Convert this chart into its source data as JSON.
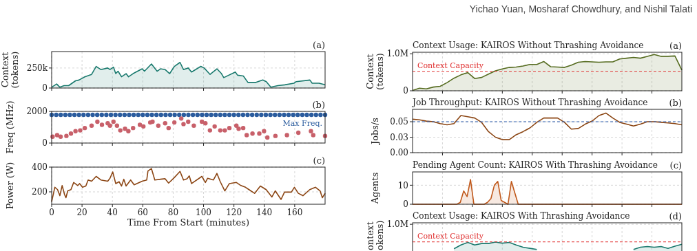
{
  "chart_data": [
    {
      "type": "other",
      "title": "Yichao Yuan, Mosharaf Chowdhury, and Nishil Talati"
    },
    {
      "type": "area",
      "ylabel": "Context\n(tokens)",
      "annotations": [
        "(a)"
      ],
      "xlim": [
        0,
        180
      ],
      "xticks": [
        0,
        20,
        40,
        60,
        80,
        100,
        120,
        140,
        160
      ],
      "ylim": [
        0,
        455000
      ],
      "yticks": [
        0,
        {
          "value": 250000,
          "label": "250k"
        }
      ],
      "grid": true,
      "tick_labels": "y",
      "series": [
        {
          "color": "#1a7a6e",
          "x": [
            0,
            3.3,
            5.4,
            8.2,
            11.2,
            15.7,
            18,
            21.8,
            26.3,
            29.3,
            32.4,
            36.9,
            38.4,
            40.7,
            42.2,
            43.7,
            46,
            49,
            50.6,
            53.6,
            59.6,
            61.1,
            65.7,
            69.4,
            71.7,
            74.7,
            77.7,
            80.8,
            84.5,
            86.8,
            89.9,
            92.1,
            98.2,
            100.4,
            104.3,
            108.8,
            111.8,
            113.3,
            120.9,
            122.4,
            126.2,
            129.2,
            134.5,
            139,
            141.3,
            144.3,
            148.9,
            153.4,
            159.5,
            161,
            170,
            171.5,
            176,
            180
          ],
          "values": [
            10000,
            50000,
            10000,
            30000,
            30000,
            90000,
            100000,
            140000,
            170000,
            270000,
            230000,
            250000,
            230000,
            260000,
            180000,
            210000,
            140000,
            180000,
            140000,
            180000,
            240000,
            210000,
            300000,
            210000,
            240000,
            230000,
            180000,
            270000,
            320000,
            230000,
            250000,
            200000,
            270000,
            250000,
            170000,
            240000,
            180000,
            130000,
            200000,
            160000,
            150000,
            70000,
            70000,
            100000,
            80000,
            10000,
            30000,
            40000,
            60000,
            80000,
            100000,
            60000,
            60000,
            40000
          ]
        }
      ]
    },
    {
      "type": "scatter",
      "ylabel": "Freq (MHz)",
      "annotations": [
        "(b)"
      ],
      "xlim": [
        0,
        180
      ],
      "xticks": [
        0,
        20,
        40,
        60,
        80,
        100,
        120,
        140,
        160
      ],
      "ylim": [
        0,
        2000
      ],
      "yticks": [
        0,
        2000
      ],
      "grid": true,
      "tick_labels": "y",
      "marker": "circle",
      "series": [
        {
          "name": "Max Freq.",
          "color": "#2b5c9e",
          "x": [
            0,
            3,
            6,
            9,
            12,
            15,
            18,
            21,
            24,
            27,
            30,
            33,
            36,
            39,
            42,
            45,
            48,
            51,
            54,
            57,
            60,
            63,
            66,
            69,
            72,
            75,
            78,
            81,
            84,
            87,
            90,
            93,
            96,
            99,
            102,
            105,
            108,
            111,
            114,
            117,
            120,
            123,
            126,
            129,
            132,
            135,
            138,
            141,
            144,
            147,
            150,
            153,
            156,
            159,
            162,
            165,
            168,
            171,
            174,
            177,
            180
          ],
          "values": [
            1780,
            1780,
            1780,
            1780,
            1780,
            1780,
            1780,
            1780,
            1780,
            1780,
            1780,
            1780,
            1780,
            1780,
            1780,
            1780,
            1780,
            1780,
            1780,
            1780,
            1780,
            1780,
            1780,
            1780,
            1780,
            1780,
            1780,
            1780,
            1780,
            1780,
            1780,
            1780,
            1780,
            1780,
            1780,
            1780,
            1780,
            1780,
            1780,
            1780,
            1780,
            1780,
            1780,
            1780,
            1780,
            1780,
            1780,
            1780,
            1780,
            1780,
            1780,
            1780,
            1780,
            1780,
            1780,
            1780,
            1780,
            1780,
            1780,
            1780,
            1780
          ]
        },
        {
          "color": "#c8606a",
          "x": [
            0.6,
            3.6,
            5.9,
            9.7,
            12.7,
            15.7,
            18.8,
            21.8,
            26.3,
            30.1,
            33.1,
            36.9,
            38.4,
            40.7,
            43,
            45.2,
            48.3,
            50.5,
            53.6,
            58.1,
            60.4,
            64.9,
            66.4,
            70.2,
            74.7,
            77,
            80.8,
            85.3,
            86.8,
            89.9,
            93.6,
            98.9,
            101.2,
            104.2,
            107.3,
            111,
            114,
            117,
            121.6,
            123.1,
            126.1,
            128.4,
            132.2,
            136.7,
            139.8,
            142,
            147.3,
            154.9,
            162.4,
            170.7,
            172.2,
            180
          ],
          "values": [
            400,
            500,
            400,
            450,
            600,
            750,
            800,
            950,
            1100,
            1350,
            1150,
            1250,
            1100,
            1350,
            1100,
            800,
            900,
            750,
            950,
            1150,
            1050,
            1300,
            1350,
            1100,
            1250,
            950,
            1300,
            1550,
            1200,
            1350,
            1100,
            1350,
            1250,
            800,
            1050,
            800,
            800,
            950,
            1100,
            900,
            950,
            500,
            600,
            600,
            750,
            350,
            450,
            500,
            650,
            750,
            500,
            450
          ]
        }
      ]
    },
    {
      "type": "line",
      "ylabel": "Power (W)",
      "xlabel": "Time From Start (minutes)",
      "annotations": [
        "(c)"
      ],
      "xlim": [
        0,
        180
      ],
      "xticks": [
        0,
        20,
        40,
        60,
        80,
        100,
        120,
        140,
        160
      ],
      "ylim": [
        100,
        400
      ],
      "yticks": [
        200,
        400
      ],
      "grid": true,
      "series": [
        {
          "color": "#8b4513",
          "x": [
            0,
            2.1,
            3.9,
            5.4,
            6.9,
            8.5,
            9.4,
            10.6,
            12.7,
            14.5,
            17.2,
            18.4,
            20.3,
            22.5,
            24,
            26.3,
            29.3,
            32.4,
            36.9,
            38.4,
            40.2,
            42.2,
            44.4,
            46,
            47.5,
            49,
            52,
            54.3,
            59.6,
            62.6,
            63.4,
            65.7,
            67.9,
            71.7,
            74.7,
            77,
            80.8,
            84.5,
            86.8,
            89.1,
            90.6,
            92.1,
            98.9,
            101.2,
            102.7,
            106.5,
            108.8,
            111,
            114,
            117,
            121.6,
            124.6,
            127.6,
            129.9,
            133.6,
            137.4,
            141.2,
            145,
            147.2,
            151,
            153.3,
            157.8,
            159.8,
            162.4,
            165.4,
            169.9,
            173.7,
            176.7,
            178.2,
            180
          ],
          "values": [
            120,
            237,
            218,
            169,
            251,
            178,
            153,
            208,
            218,
            276,
            251,
            267,
            237,
            247,
            296,
            286,
            325,
            296,
            286,
            310,
            361,
            267,
            282,
            247,
            302,
            247,
            296,
            257,
            286,
            296,
            369,
            388,
            296,
            302,
            306,
            271,
            316,
            365,
            296,
            306,
            329,
            267,
            325,
            276,
            310,
            296,
            349,
            282,
            208,
            267,
            276,
            251,
            237,
            218,
            188,
            247,
            218,
            159,
            208,
            139,
            198,
            198,
            237,
            188,
            169,
            218,
            237,
            208,
            153,
            188
          ]
        }
      ]
    },
    {
      "type": "area",
      "title": "Context Usage: KAIROS Without Thrashing Avoidance",
      "ylabel": "Context\n(tokens)",
      "annotations": [
        "(a)"
      ],
      "ylim": [
        0,
        1040000
      ],
      "yticks": [
        0,
        {
          "value": 1000000,
          "label": "1.0M"
        }
      ],
      "grid": true,
      "categories": [
        null,
        null,
        null,
        null,
        null,
        null,
        null,
        null,
        null,
        null,
        null,
        null,
        null,
        null,
        null,
        null,
        null,
        null,
        null,
        null,
        null,
        null,
        null,
        null,
        null,
        null,
        null,
        null,
        null,
        null,
        null,
        null,
        null,
        null,
        null,
        null,
        null,
        null,
        null,
        null
      ],
      "ref_lines": [
        {
          "axis": "y",
          "value": 525000,
          "label": "Context Capacity",
          "color": "#e03030",
          "line_style": "dashed"
        }
      ],
      "series": [
        {
          "color": "#556b1f",
          "values": [
            10000,
            70000,
            50000,
            100000,
            120000,
            220000,
            340000,
            430000,
            490000,
            330000,
            360000,
            450000,
            540000,
            590000,
            630000,
            640000,
            670000,
            710000,
            710000,
            790000,
            650000,
            640000,
            630000,
            690000,
            770000,
            790000,
            780000,
            770000,
            780000,
            780000,
            860000,
            880000,
            900000,
            880000,
            930000,
            980000,
            930000,
            930000,
            940000,
            560000
          ]
        }
      ]
    },
    {
      "type": "line",
      "title": "Job Throughput: KAIROS Without Thrashing Avoidance",
      "ylabel": "Jobs/s",
      "annotations": [
        "(b)"
      ],
      "ylim": [
        0,
        0.07
      ],
      "yticks": [
        {
          "value": 0,
          "label": "0.00"
        },
        {
          "value": 0.025,
          "label": "0.03"
        },
        {
          "value": 0.05,
          "label": "0.05"
        }
      ],
      "grid": true,
      "categories": [
        null,
        null,
        null,
        null,
        null,
        null,
        null,
        null,
        null,
        null,
        null,
        null,
        null,
        null,
        null,
        null,
        null,
        null,
        null,
        null,
        null,
        null,
        null,
        null,
        null,
        null,
        null,
        null,
        null,
        null,
        null,
        null,
        null,
        null,
        null,
        null,
        null,
        null,
        null,
        null
      ],
      "ref_lines": [
        {
          "axis": "y",
          "value": 0.05,
          "color": "#3060b0",
          "line_style": "dashed"
        }
      ],
      "series": [
        {
          "color": "#8b4513",
          "values": [
            0.054,
            0.053,
            0.051,
            0.05,
            0.047,
            0.045,
            0.047,
            0.06,
            0.058,
            0.056,
            0.049,
            0.034,
            0.025,
            0.021,
            0.021,
            0.029,
            0.034,
            0.04,
            0.049,
            0.056,
            0.056,
            0.056,
            0.049,
            0.038,
            0.039,
            0.046,
            0.051,
            0.06,
            0.064,
            0.056,
            0.049,
            0.046,
            0.043,
            0.046,
            0.05,
            0.05,
            0.049,
            0.048,
            0.047,
            0.045
          ]
        }
      ]
    },
    {
      "type": "area",
      "title": "Pending Agent Count: KAIROS With Thrashing Avoidance",
      "ylabel": "Agents",
      "annotations": [
        "(c)"
      ],
      "ylim": [
        0,
        17
      ],
      "yticks": [
        0,
        10
      ],
      "grid": true,
      "categories": [
        null,
        null,
        null,
        null,
        null,
        null,
        null,
        null,
        null,
        null,
        null,
        null,
        null,
        null,
        null,
        null,
        null,
        null,
        null,
        null,
        null,
        null,
        null,
        null,
        null,
        null,
        null,
        null,
        null,
        null,
        null,
        null,
        null,
        null,
        null,
        null,
        null,
        null,
        null,
        null,
        null,
        null,
        null,
        null,
        null,
        null,
        null,
        null,
        null,
        null,
        null,
        null,
        null,
        null,
        null,
        null,
        null,
        null,
        null,
        null,
        null,
        null,
        null,
        null,
        null,
        null,
        null,
        null,
        null,
        null,
        null,
        null,
        null,
        null,
        null,
        null,
        null,
        null,
        null,
        null
      ],
      "series": [
        {
          "color": "#c0581a",
          "values": [
            0,
            0,
            0,
            0,
            0,
            0,
            0,
            0,
            0,
            0,
            0,
            0,
            0,
            0,
            1,
            7,
            4,
            13,
            0,
            0,
            0,
            0,
            1,
            3,
            10,
            12,
            2,
            1,
            0,
            12,
            6,
            0,
            0,
            0,
            0,
            0,
            0,
            0,
            0,
            0,
            0,
            0,
            0,
            0,
            0,
            0,
            0,
            0,
            0,
            0,
            0,
            0,
            0,
            0,
            0,
            0,
            0,
            0,
            0,
            0,
            0,
            0,
            0,
            0,
            0,
            0,
            0,
            0,
            0,
            0,
            0,
            0,
            0,
            0,
            0,
            0,
            0,
            0,
            0,
            0
          ]
        }
      ]
    },
    {
      "type": "area",
      "title": "Context Usage: KAIROS With Thrashing Avoidance",
      "ylabel": "ontext\nokens)",
      "annotations": [
        "(d)"
      ],
      "ylim": [
        0,
        1040000
      ],
      "yticks": [
        0,
        {
          "value": 1000000,
          "label": "1.0M"
        }
      ],
      "grid": true,
      "categories": [
        null,
        null,
        null,
        null,
        null,
        null,
        null,
        null,
        null,
        null,
        null,
        null,
        null,
        null,
        null,
        null,
        null,
        null,
        null,
        null,
        null,
        null,
        null,
        null,
        null,
        null,
        null,
        null,
        null,
        null,
        null,
        null,
        null,
        null,
        null,
        null,
        null,
        null,
        null,
        null
      ],
      "ref_lines": [
        {
          "axis": "y",
          "value": 525000,
          "label": "Context Capacity",
          "color": "#e03030",
          "line_style": "dashed"
        }
      ],
      "series": [
        {
          "color": "#1a7a6e",
          "values": [
            null,
            null,
            null,
            null,
            null,
            null,
            340000,
            440000,
            510000,
            440000,
            480000,
            480000,
            520000,
            490000,
            510000,
            440000,
            380000,
            350000,
            320000,
            null,
            null,
            null,
            null,
            null,
            null,
            null,
            null,
            null,
            null,
            null,
            null,
            null,
            320000,
            380000,
            400000,
            380000,
            400000,
            350000,
            410000,
            460000
          ]
        }
      ]
    }
  ]
}
